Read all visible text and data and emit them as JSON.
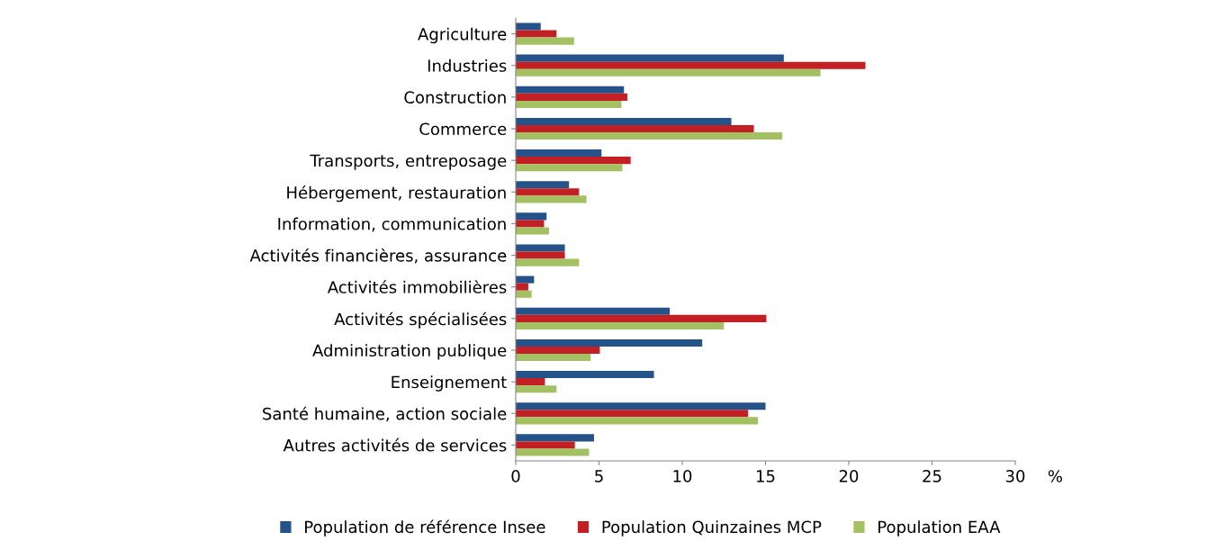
{
  "chart_data": {
    "type": "bar",
    "orientation": "horizontal",
    "xlabel": "%",
    "categories": [
      "Agriculture",
      "Industries",
      "Construction",
      "Commerce",
      "Transports, entreposage",
      "Hébergement, restauration",
      "Information, communication",
      "Activités financières, assurance",
      "Activités immobilières",
      "Activités spécialisées",
      "Administration publique",
      "Enseignement",
      "Santé humaine, action sociale",
      "Autres activités de services"
    ],
    "series": [
      {
        "name": "Population de référence Insee",
        "color": "#255389",
        "values": [
          1.5,
          16.1,
          6.5,
          12.95,
          5.15,
          3.2,
          1.85,
          2.95,
          1.1,
          9.25,
          11.2,
          8.3,
          15.0,
          4.7
        ]
      },
      {
        "name": "Population Quinzaines MCP",
        "color": "#c32026",
        "values": [
          2.45,
          21.0,
          6.7,
          14.3,
          6.9,
          3.8,
          1.7,
          2.95,
          0.75,
          15.05,
          5.05,
          1.75,
          13.95,
          3.55
        ]
      },
      {
        "name": "Population EAA",
        "color": "#a3c163",
        "values": [
          3.5,
          18.3,
          6.35,
          16.0,
          6.4,
          4.25,
          2.0,
          3.8,
          0.95,
          12.5,
          4.5,
          2.45,
          14.55,
          4.4
        ]
      }
    ],
    "xlim": [
      0,
      30
    ],
    "xticks": [
      0,
      5,
      10,
      15,
      20,
      25,
      30
    ],
    "grid": false,
    "legend": "bottom"
  }
}
